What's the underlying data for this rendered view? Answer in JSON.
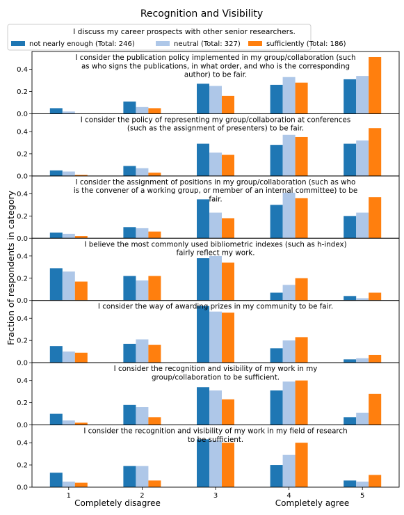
{
  "chart_data": {
    "type": "bar",
    "title": "Recognition and Visibility",
    "ylabel": "Fraction of respondents in category",
    "categories": [
      "1",
      "2",
      "3",
      "4",
      "5"
    ],
    "xlabel_left": "Completely disagree",
    "xlabel_right": "Completely agree",
    "ylim": [
      0,
      0.56
    ],
    "yticks": [
      "0.0",
      "0.2",
      "0.4"
    ],
    "legend": {
      "title": "I discuss my career prospects with other senior researchers.",
      "placement": "top",
      "entries": [
        {
          "label": "not nearly enough (Total: 246)",
          "color": "#1f77b4"
        },
        {
          "label": "neutral (Total: 327)",
          "color": "#aec7e8"
        },
        {
          "label": "sufficiently (Total: 186)",
          "color": "#ff7f0e"
        }
      ]
    },
    "panels": [
      {
        "title_lines": [
          "I consider the publication policy implemented in my group/collaboration (such",
          "as who signs the publications, in what order, and who is the corresponding",
          "author) to be fair."
        ],
        "series": [
          [
            0.05,
            0.11,
            0.27,
            0.26,
            0.31
          ],
          [
            0.02,
            0.06,
            0.25,
            0.33,
            0.34
          ],
          [
            0.0,
            0.05,
            0.16,
            0.28,
            0.51
          ]
        ]
      },
      {
        "title_lines": [
          "I consider the policy of representing my group/collaboration at conferences",
          "(such as the assignment of presenters) to be fair."
        ],
        "series": [
          [
            0.05,
            0.09,
            0.29,
            0.28,
            0.29
          ],
          [
            0.04,
            0.07,
            0.21,
            0.37,
            0.32
          ],
          [
            0.01,
            0.03,
            0.19,
            0.35,
            0.43
          ]
        ]
      },
      {
        "title_lines": [
          "I consider the assignment of positions in my group/collaboration (such as who",
          "is the convener of a working group, or member of an internal committee) to be",
          "fair."
        ],
        "series": [
          [
            0.05,
            0.1,
            0.35,
            0.3,
            0.2
          ],
          [
            0.04,
            0.09,
            0.23,
            0.41,
            0.23
          ],
          [
            0.02,
            0.06,
            0.18,
            0.36,
            0.37
          ]
        ]
      },
      {
        "title_lines": [
          "I believe the most commonly used bibliometric indexes (such as h-index)",
          "fairly reflect my work."
        ],
        "series": [
          [
            0.29,
            0.22,
            0.38,
            0.07,
            0.04
          ],
          [
            0.26,
            0.18,
            0.4,
            0.14,
            0.02
          ],
          [
            0.17,
            0.22,
            0.34,
            0.2,
            0.07
          ]
        ]
      },
      {
        "title_lines": [
          "I consider the way of awarding prizes in my community to be fair."
        ],
        "series": [
          [
            0.15,
            0.17,
            0.51,
            0.13,
            0.03
          ],
          [
            0.1,
            0.21,
            0.46,
            0.2,
            0.04
          ],
          [
            0.09,
            0.16,
            0.45,
            0.23,
            0.07
          ]
        ]
      },
      {
        "title_lines": [
          "I consider the recognition and visibility of my work in my",
          "group/collaboration to be sufficient."
        ],
        "series": [
          [
            0.1,
            0.18,
            0.34,
            0.31,
            0.07
          ],
          [
            0.04,
            0.16,
            0.31,
            0.39,
            0.11
          ],
          [
            0.02,
            0.07,
            0.23,
            0.4,
            0.28
          ]
        ]
      },
      {
        "title_lines": [
          "I consider the recognition and visibility of my work in my field of research",
          "to be sufficient."
        ],
        "series": [
          [
            0.13,
            0.19,
            0.43,
            0.2,
            0.06
          ],
          [
            0.05,
            0.19,
            0.42,
            0.29,
            0.05
          ],
          [
            0.04,
            0.06,
            0.4,
            0.4,
            0.11
          ]
        ]
      }
    ]
  }
}
